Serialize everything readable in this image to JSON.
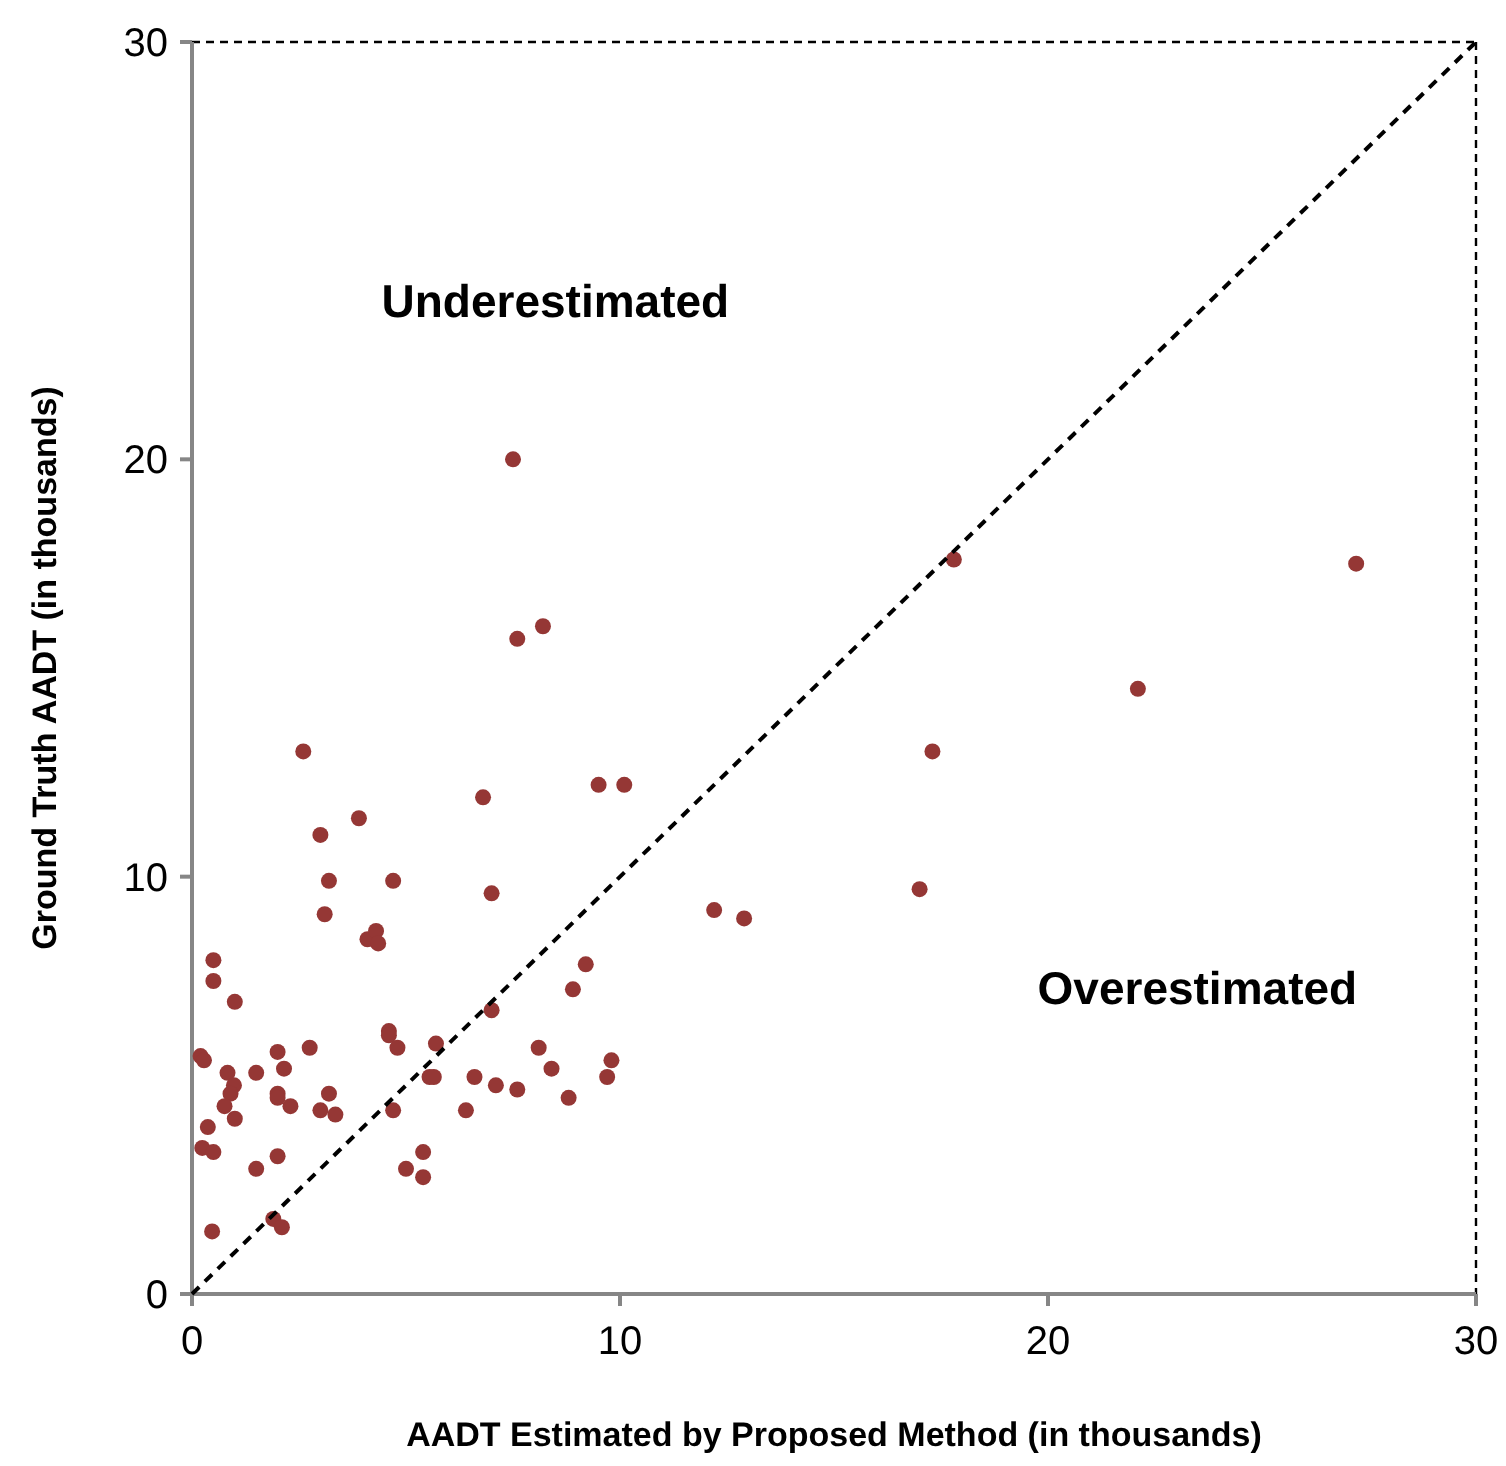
{
  "chart_data": {
    "type": "scatter",
    "xlabel": "AADT Estimated by Proposed Method (in thousands)",
    "ylabel": "Ground Truth  AADT (in thousands)",
    "xlim": [
      0,
      30
    ],
    "ylim": [
      0,
      30
    ],
    "xticks": [
      0,
      10,
      20,
      30
    ],
    "yticks": [
      0,
      10,
      20,
      30
    ],
    "grid": false,
    "marker": "circle",
    "series": [
      {
        "color": "#953735",
        "x": [
          7.5,
          7.6,
          8.2,
          9.5,
          10.1,
          2.6,
          3.9,
          3.0,
          3.2,
          4.7,
          3.1,
          4.1,
          4.3,
          4.35,
          6.8,
          7.0,
          0.5,
          0.5,
          9.2,
          1.0,
          7.0,
          8.9,
          0.2,
          0.28,
          2.0,
          2.75,
          4.6,
          4.6,
          4.8,
          5.7,
          8.1,
          9.8,
          0.83,
          0.98,
          0.9,
          1.5,
          2.15,
          2.0,
          2.0,
          2.3,
          3.2,
          3.0,
          3.35,
          5.55,
          5.65,
          4.7,
          6.6,
          7.1,
          7.6,
          8.4,
          9.7,
          8.8,
          6.4,
          0.76,
          1.0,
          0.37,
          0.24,
          0.5,
          2.0,
          1.5,
          5.4,
          5.0,
          5.4,
          1.9,
          2.1,
          0.47,
          17.8,
          27.2,
          22.1,
          17.3,
          17.0,
          12.2,
          12.9
        ],
        "values": [
          20.0,
          15.7,
          16.0,
          12.2,
          12.2,
          13.0,
          11.4,
          11.0,
          9.9,
          9.9,
          9.1,
          8.5,
          8.7,
          8.4,
          11.9,
          9.6,
          8.0,
          7.5,
          7.9,
          7.0,
          6.8,
          7.3,
          5.7,
          5.6,
          5.8,
          5.9,
          6.3,
          6.2,
          5.9,
          6.0,
          5.9,
          5.6,
          5.3,
          5.0,
          4.8,
          5.3,
          5.4,
          4.8,
          4.7,
          4.5,
          4.8,
          4.4,
          4.3,
          5.2,
          5.2,
          4.4,
          5.2,
          5.0,
          4.9,
          5.4,
          5.2,
          4.7,
          4.4,
          4.5,
          4.2,
          4.0,
          3.5,
          3.4,
          3.3,
          3.0,
          3.4,
          3.0,
          2.8,
          1.8,
          1.6,
          1.5,
          17.6,
          17.5,
          14.5,
          13.0,
          9.7,
          9.2,
          9.0
        ]
      },
      {
        "type": "line",
        "color": "#000000",
        "line_style": "dashed",
        "marker": "none",
        "x": [
          0,
          30
        ],
        "values": [
          0,
          30
        ]
      }
    ],
    "annotations": [
      "Underestimated",
      "Overestimated"
    ]
  }
}
